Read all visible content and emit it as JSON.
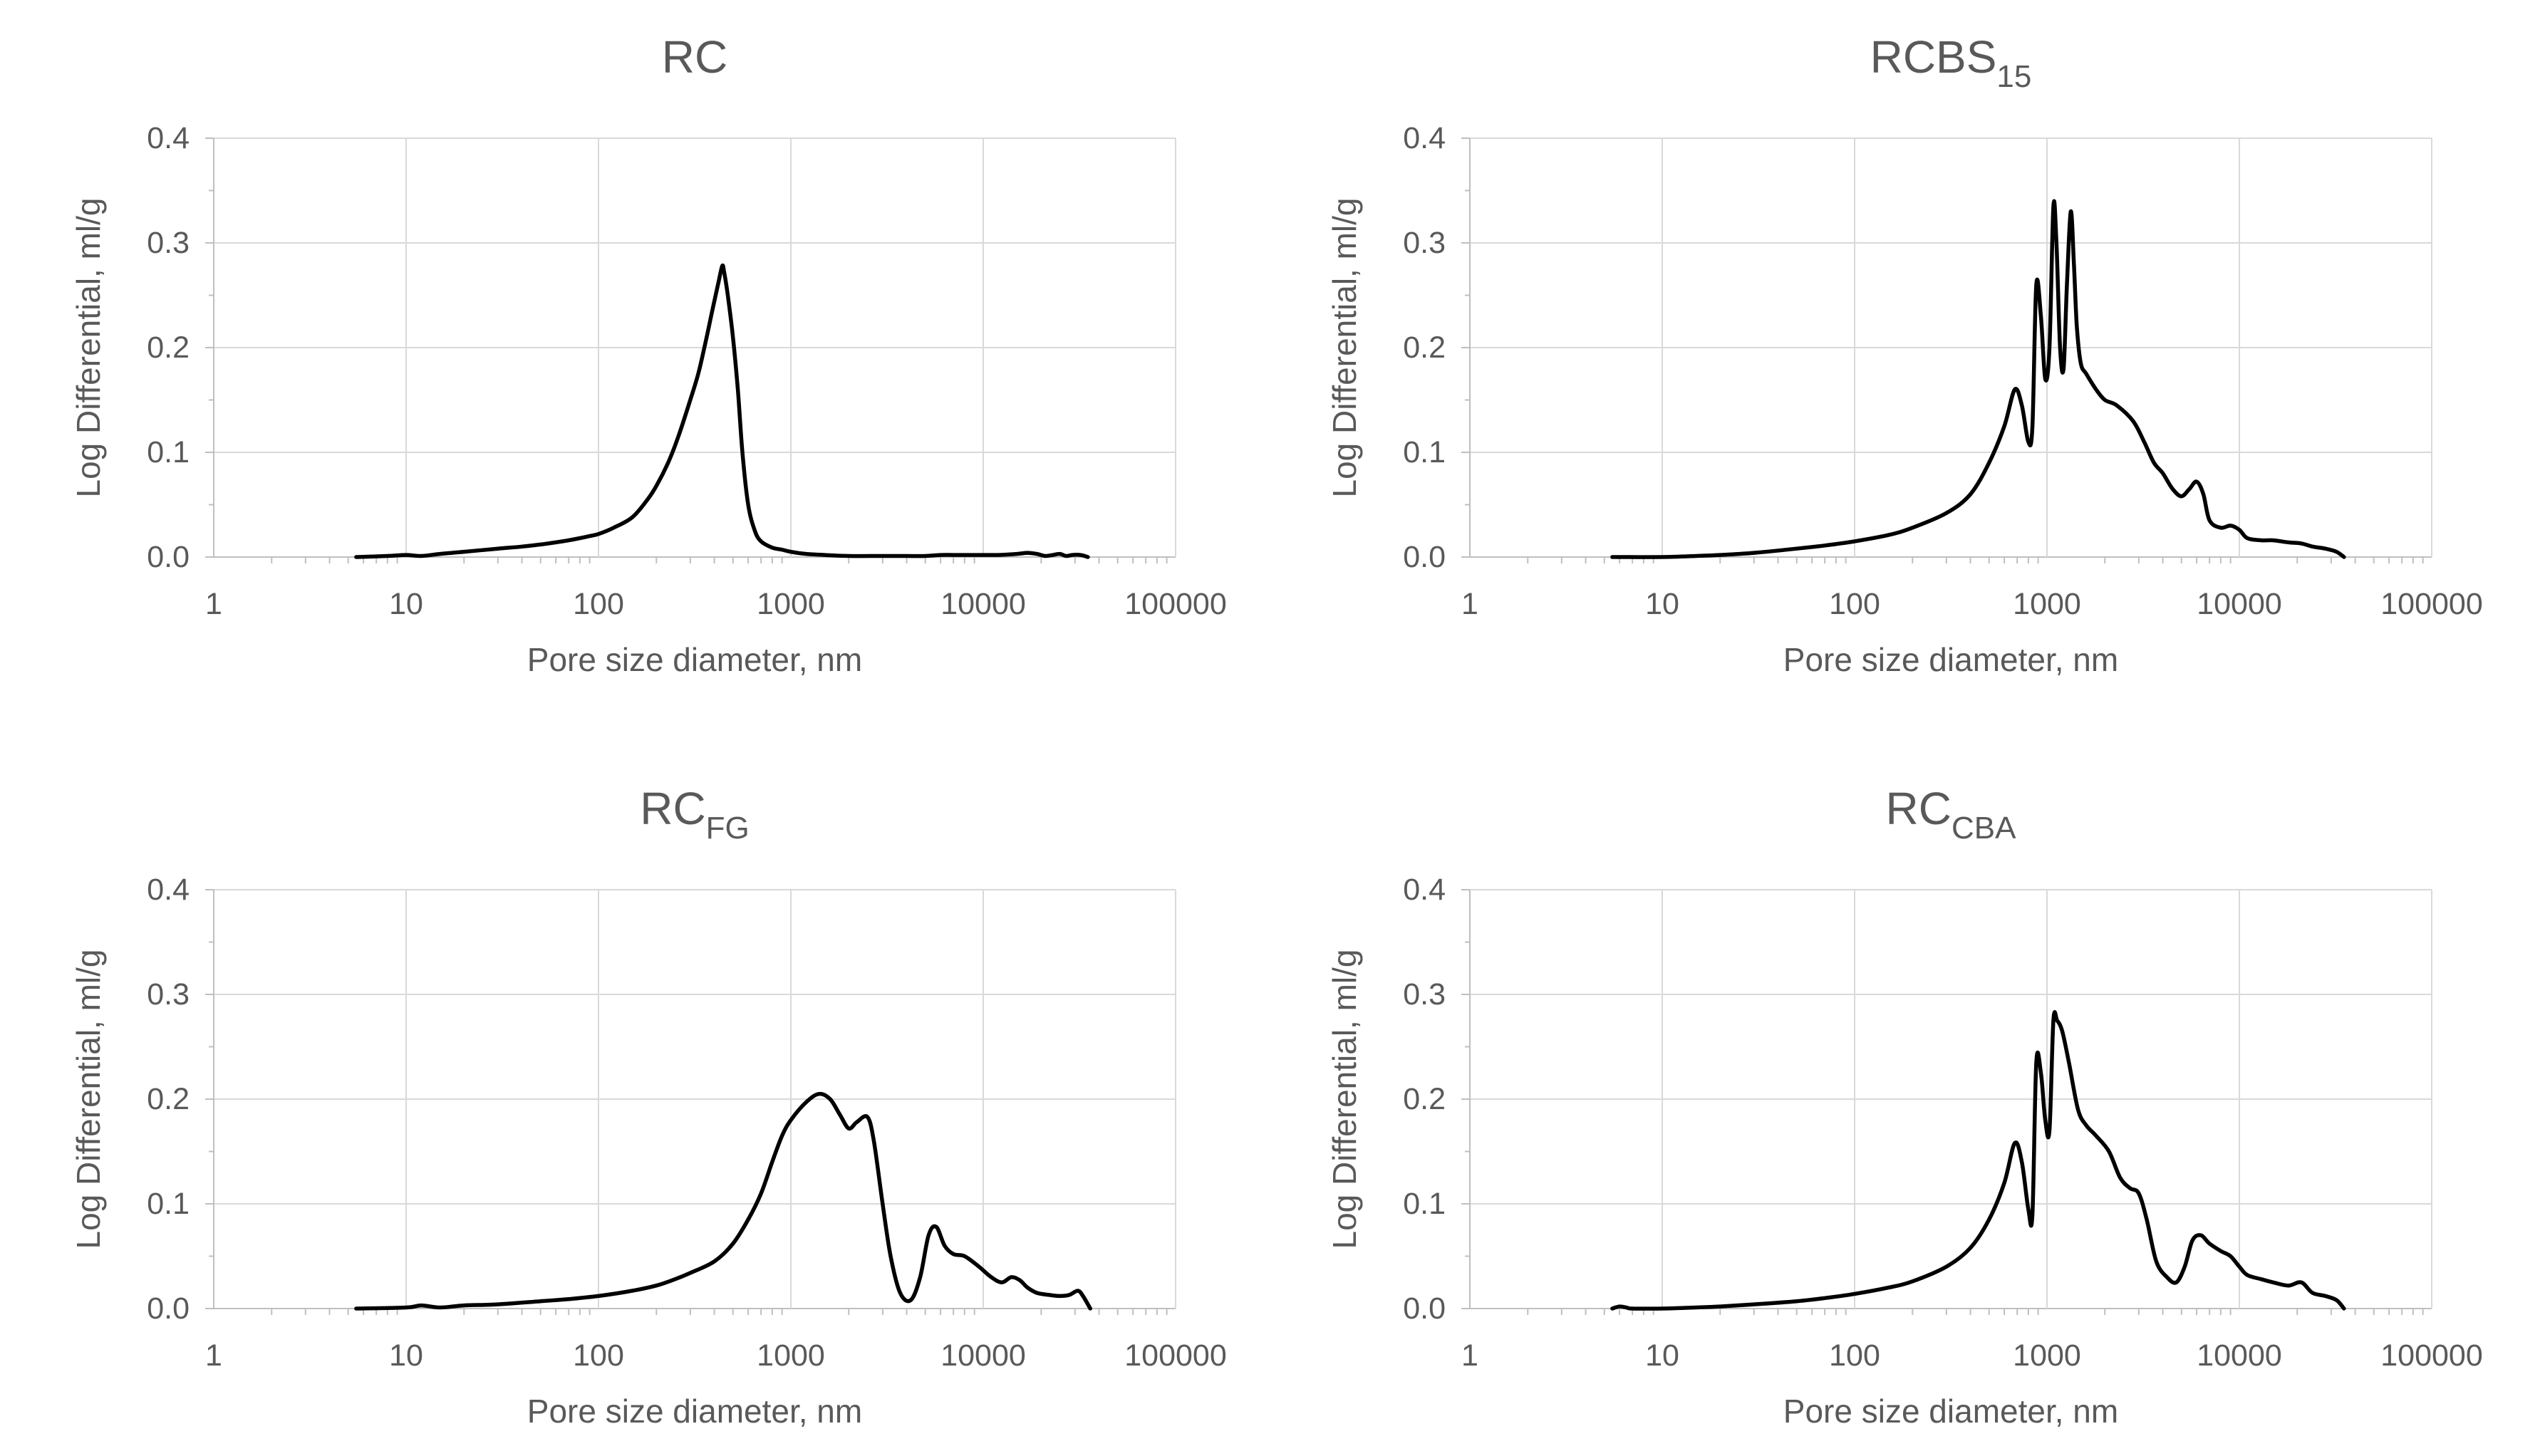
{
  "chart_data": [
    {
      "type": "line",
      "title": "RC",
      "title_main": "RC",
      "title_sub": "",
      "xlabel": "Pore size diameter, nm",
      "ylabel": "Log Differential, ml/g",
      "xscale": "log",
      "xlim": [
        1,
        100000
      ],
      "ylim": [
        0,
        0.4
      ],
      "x_ticks": [
        "1",
        "10",
        "100",
        "1000",
        "10000",
        "100000"
      ],
      "y_ticks": [
        "0.0",
        "0.1",
        "0.2",
        "0.3",
        "0.4"
      ],
      "grid": true,
      "series": [
        {
          "name": "RC",
          "color": "#000000",
          "x": [
            5.5,
            8,
            10,
            12,
            15,
            20,
            30,
            40,
            50,
            60,
            70,
            80,
            90,
            100,
            120,
            150,
            180,
            200,
            230,
            260,
            300,
            330,
            360,
            390,
            420,
            440,
            450,
            470,
            500,
            530,
            560,
            600,
            650,
            700,
            800,
            900,
            1000,
            1200,
            1500,
            2000,
            3000,
            4000,
            5000,
            6000,
            7000,
            8000,
            9000,
            10000,
            12000,
            15000,
            17000,
            19000,
            21000,
            23000,
            25000,
            27000,
            29000,
            32000,
            35000
          ],
          "y": [
            0.0,
            0.001,
            0.002,
            0.001,
            0.003,
            0.005,
            0.008,
            0.01,
            0.012,
            0.014,
            0.016,
            0.018,
            0.02,
            0.022,
            0.028,
            0.038,
            0.055,
            0.068,
            0.09,
            0.115,
            0.15,
            0.175,
            0.205,
            0.235,
            0.262,
            0.278,
            0.272,
            0.25,
            0.21,
            0.16,
            0.1,
            0.05,
            0.025,
            0.015,
            0.009,
            0.007,
            0.005,
            0.003,
            0.002,
            0.001,
            0.001,
            0.001,
            0.001,
            0.002,
            0.002,
            0.002,
            0.002,
            0.002,
            0.002,
            0.003,
            0.004,
            0.003,
            0.001,
            0.002,
            0.003,
            0.001,
            0.002,
            0.002,
            0.0
          ]
        }
      ]
    },
    {
      "type": "line",
      "title": "RCBS15",
      "title_main": "RCBS",
      "title_sub": "15",
      "xlabel": "Pore size diameter, nm",
      "ylabel": "Log Differential, ml/g",
      "xscale": "log",
      "xlim": [
        1,
        100000
      ],
      "ylim": [
        0,
        0.4
      ],
      "x_ticks": [
        "1",
        "10",
        "100",
        "1000",
        "10000",
        "100000"
      ],
      "y_ticks": [
        "0.0",
        "0.1",
        "0.2",
        "0.3",
        "0.4"
      ],
      "grid": true,
      "series": [
        {
          "name": "RCBS15",
          "color": "#000000",
          "x": [
            5.5,
            10,
            15,
            20,
            30,
            50,
            70,
            100,
            150,
            200,
            300,
            400,
            500,
            600,
            680,
            740,
            800,
            840,
            880,
            930,
            980,
            1030,
            1080,
            1120,
            1170,
            1220,
            1270,
            1330,
            1380,
            1430,
            1500,
            1600,
            1800,
            2000,
            2300,
            2800,
            3200,
            3600,
            4000,
            4500,
            5000,
            5500,
            6000,
            6500,
            7000,
            8000,
            9000,
            10000,
            11000,
            13000,
            15000,
            18000,
            21000,
            24000,
            28000,
            32000,
            35000
          ],
          "y": [
            0.0,
            0.0,
            0.001,
            0.002,
            0.004,
            0.008,
            0.011,
            0.015,
            0.021,
            0.028,
            0.042,
            0.06,
            0.09,
            0.125,
            0.16,
            0.145,
            0.11,
            0.125,
            0.26,
            0.23,
            0.17,
            0.2,
            0.335,
            0.3,
            0.2,
            0.18,
            0.26,
            0.33,
            0.28,
            0.22,
            0.185,
            0.175,
            0.16,
            0.15,
            0.145,
            0.13,
            0.11,
            0.09,
            0.08,
            0.065,
            0.058,
            0.065,
            0.072,
            0.06,
            0.035,
            0.028,
            0.03,
            0.026,
            0.018,
            0.016,
            0.016,
            0.014,
            0.013,
            0.01,
            0.008,
            0.005,
            0.0
          ]
        }
      ]
    },
    {
      "type": "line",
      "title": "RCFG",
      "title_main": "RC",
      "title_sub": "FG",
      "xlabel": "Pore size diameter, nm",
      "ylabel": "Log Differential, ml/g",
      "xscale": "log",
      "xlim": [
        1,
        100000
      ],
      "ylim": [
        0,
        0.4
      ],
      "x_ticks": [
        "1",
        "10",
        "100",
        "1000",
        "10000",
        "100000"
      ],
      "y_ticks": [
        "0.0",
        "0.1",
        "0.2",
        "0.3",
        "0.4"
      ],
      "grid": true,
      "series": [
        {
          "name": "RCFG",
          "color": "#000000",
          "x": [
            5.5,
            10,
            12,
            15,
            20,
            30,
            50,
            70,
            100,
            150,
            200,
            250,
            300,
            400,
            500,
            600,
            700,
            800,
            900,
            1000,
            1200,
            1400,
            1600,
            1800,
            2000,
            2200,
            2500,
            2700,
            3000,
            3300,
            3700,
            4200,
            4700,
            5200,
            5700,
            6300,
            7000,
            8000,
            9500,
            11000,
            12500,
            14000,
            15500,
            17000,
            19000,
            22000,
            25000,
            28000,
            31000,
            33000,
            36000
          ],
          "y": [
            0.0,
            0.001,
            0.003,
            0.001,
            0.003,
            0.004,
            0.007,
            0.009,
            0.012,
            0.017,
            0.022,
            0.028,
            0.034,
            0.045,
            0.062,
            0.085,
            0.11,
            0.14,
            0.165,
            0.18,
            0.197,
            0.205,
            0.2,
            0.185,
            0.172,
            0.178,
            0.183,
            0.16,
            0.1,
            0.05,
            0.015,
            0.008,
            0.03,
            0.07,
            0.078,
            0.06,
            0.052,
            0.05,
            0.04,
            0.03,
            0.025,
            0.03,
            0.027,
            0.02,
            0.015,
            0.013,
            0.012,
            0.013,
            0.017,
            0.012,
            0.0
          ]
        }
      ]
    },
    {
      "type": "line",
      "title": "RCCBA",
      "title_main": "RC",
      "title_sub": "CBA",
      "xlabel": "Pore size diameter, nm",
      "ylabel": "Log Differential, ml/g",
      "xscale": "log",
      "xlim": [
        1,
        100000
      ],
      "ylim": [
        0,
        0.4
      ],
      "x_ticks": [
        "1",
        "10",
        "100",
        "1000",
        "10000",
        "100000"
      ],
      "y_ticks": [
        "0.0",
        "0.1",
        "0.2",
        "0.3",
        "0.4"
      ],
      "grid": true,
      "series": [
        {
          "name": "RCCBA",
          "color": "#000000",
          "x": [
            5.5,
            6,
            6.5,
            7,
            10,
            15,
            20,
            30,
            50,
            70,
            100,
            150,
            200,
            300,
            400,
            500,
            600,
            680,
            740,
            800,
            840,
            880,
            930,
            980,
            1030,
            1080,
            1130,
            1200,
            1300,
            1450,
            1600,
            1800,
            2100,
            2400,
            2700,
            3000,
            3300,
            3700,
            4200,
            4700,
            5200,
            5700,
            6300,
            7000,
            8000,
            9000,
            10000,
            11000,
            13000,
            15000,
            18000,
            21000,
            24000,
            28000,
            32000,
            35000
          ],
          "y": [
            0.0,
            0.002,
            0.001,
            0.0,
            0.0,
            0.001,
            0.002,
            0.004,
            0.007,
            0.01,
            0.014,
            0.02,
            0.026,
            0.04,
            0.058,
            0.085,
            0.12,
            0.158,
            0.14,
            0.095,
            0.09,
            0.235,
            0.225,
            0.18,
            0.17,
            0.275,
            0.275,
            0.265,
            0.235,
            0.19,
            0.175,
            0.165,
            0.15,
            0.125,
            0.115,
            0.11,
            0.085,
            0.045,
            0.03,
            0.025,
            0.04,
            0.065,
            0.07,
            0.062,
            0.055,
            0.05,
            0.04,
            0.032,
            0.028,
            0.025,
            0.022,
            0.025,
            0.015,
            0.012,
            0.008,
            0.0
          ]
        }
      ]
    }
  ]
}
